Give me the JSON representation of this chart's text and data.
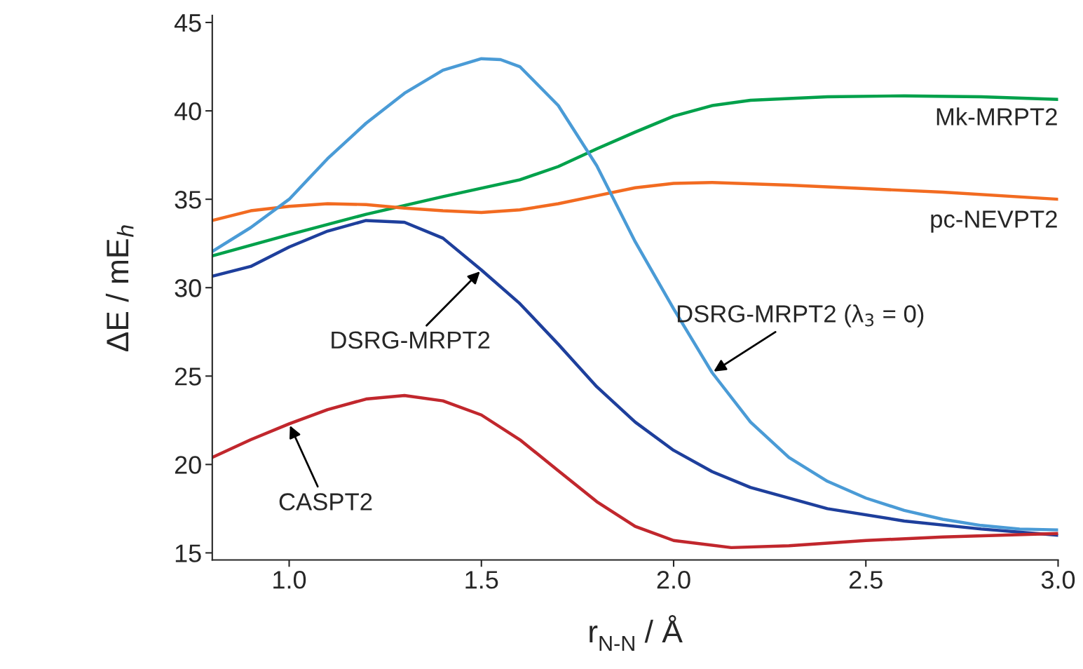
{
  "chart_data": {
    "type": "line",
    "xlabel": "r$_{N-N}$ / Å",
    "ylabel": "ΔE / mE$_{h}$",
    "xlim": [
      0.8,
      3.0
    ],
    "ylim": [
      14.6,
      45.4
    ],
    "xticks": [
      {
        "value": 1.0,
        "label": "1.0"
      },
      {
        "value": 1.5,
        "label": "1.5"
      },
      {
        "value": 2.0,
        "label": "2.0"
      },
      {
        "value": 2.5,
        "label": "2.5"
      },
      {
        "value": 3.0,
        "label": "3.0"
      }
    ],
    "yticks": [
      15,
      20,
      25,
      30,
      35,
      40,
      45
    ],
    "grid": false,
    "legend": false,
    "line_style": "solid",
    "marker": "none",
    "series": [
      {
        "name": "Mk-MRPT2",
        "color": "#00a14b",
        "x": [
          0.8,
          1.0,
          1.2,
          1.4,
          1.6,
          1.7,
          1.8,
          1.9,
          2.0,
          2.1,
          2.2,
          2.4,
          2.6,
          2.8,
          3.0
        ],
        "values": [
          31.8,
          33.0,
          34.15,
          35.15,
          36.1,
          36.85,
          37.85,
          38.8,
          39.7,
          40.3,
          40.6,
          40.8,
          40.85,
          40.8,
          40.65
        ]
      },
      {
        "name": "pc-NEVPT2",
        "color": "#f26b21",
        "x": [
          0.8,
          0.9,
          1.0,
          1.1,
          1.2,
          1.3,
          1.4,
          1.5,
          1.6,
          1.7,
          1.8,
          1.9,
          2.0,
          2.1,
          2.3,
          2.5,
          2.7,
          3.0
        ],
        "values": [
          33.8,
          34.35,
          34.6,
          34.75,
          34.7,
          34.5,
          34.35,
          34.25,
          34.4,
          34.75,
          35.2,
          35.65,
          35.9,
          35.95,
          35.8,
          35.6,
          35.4,
          35.0
        ]
      },
      {
        "name": "DSRG-MRPT2 (λ$_{3}$ = 0)",
        "color": "#4a9bd6",
        "x": [
          0.8,
          0.9,
          1.0,
          1.1,
          1.2,
          1.3,
          1.4,
          1.5,
          1.55,
          1.6,
          1.7,
          1.8,
          1.9,
          2.0,
          2.1,
          2.2,
          2.3,
          2.4,
          2.5,
          2.6,
          2.7,
          2.8,
          2.9,
          3.0
        ],
        "values": [
          32.05,
          33.4,
          35.0,
          37.3,
          39.3,
          41.0,
          42.3,
          42.95,
          42.9,
          42.5,
          40.3,
          36.9,
          32.6,
          28.8,
          25.2,
          22.4,
          20.4,
          19.05,
          18.1,
          17.4,
          16.9,
          16.55,
          16.35,
          16.3
        ]
      },
      {
        "name": "DSRG-MRPT2",
        "color": "#1e3f9c",
        "x": [
          0.8,
          0.9,
          1.0,
          1.1,
          1.2,
          1.3,
          1.4,
          1.5,
          1.6,
          1.7,
          1.8,
          1.9,
          2.0,
          2.1,
          2.2,
          2.4,
          2.6,
          2.8,
          3.0
        ],
        "values": [
          30.65,
          31.2,
          32.3,
          33.2,
          33.8,
          33.7,
          32.8,
          31.0,
          29.1,
          26.8,
          24.4,
          22.4,
          20.8,
          19.6,
          18.7,
          17.5,
          16.8,
          16.35,
          16.0
        ]
      },
      {
        "name": "CASPT2",
        "color": "#c1272d",
        "x": [
          0.8,
          0.9,
          1.0,
          1.1,
          1.2,
          1.3,
          1.4,
          1.5,
          1.6,
          1.7,
          1.8,
          1.9,
          2.0,
          2.15,
          2.3,
          2.5,
          2.7,
          3.0
        ],
        "values": [
          20.4,
          21.4,
          22.3,
          23.1,
          23.7,
          23.9,
          23.6,
          22.8,
          21.4,
          19.65,
          17.9,
          16.5,
          15.7,
          15.3,
          15.4,
          15.7,
          15.9,
          16.1
        ]
      }
    ]
  }
}
